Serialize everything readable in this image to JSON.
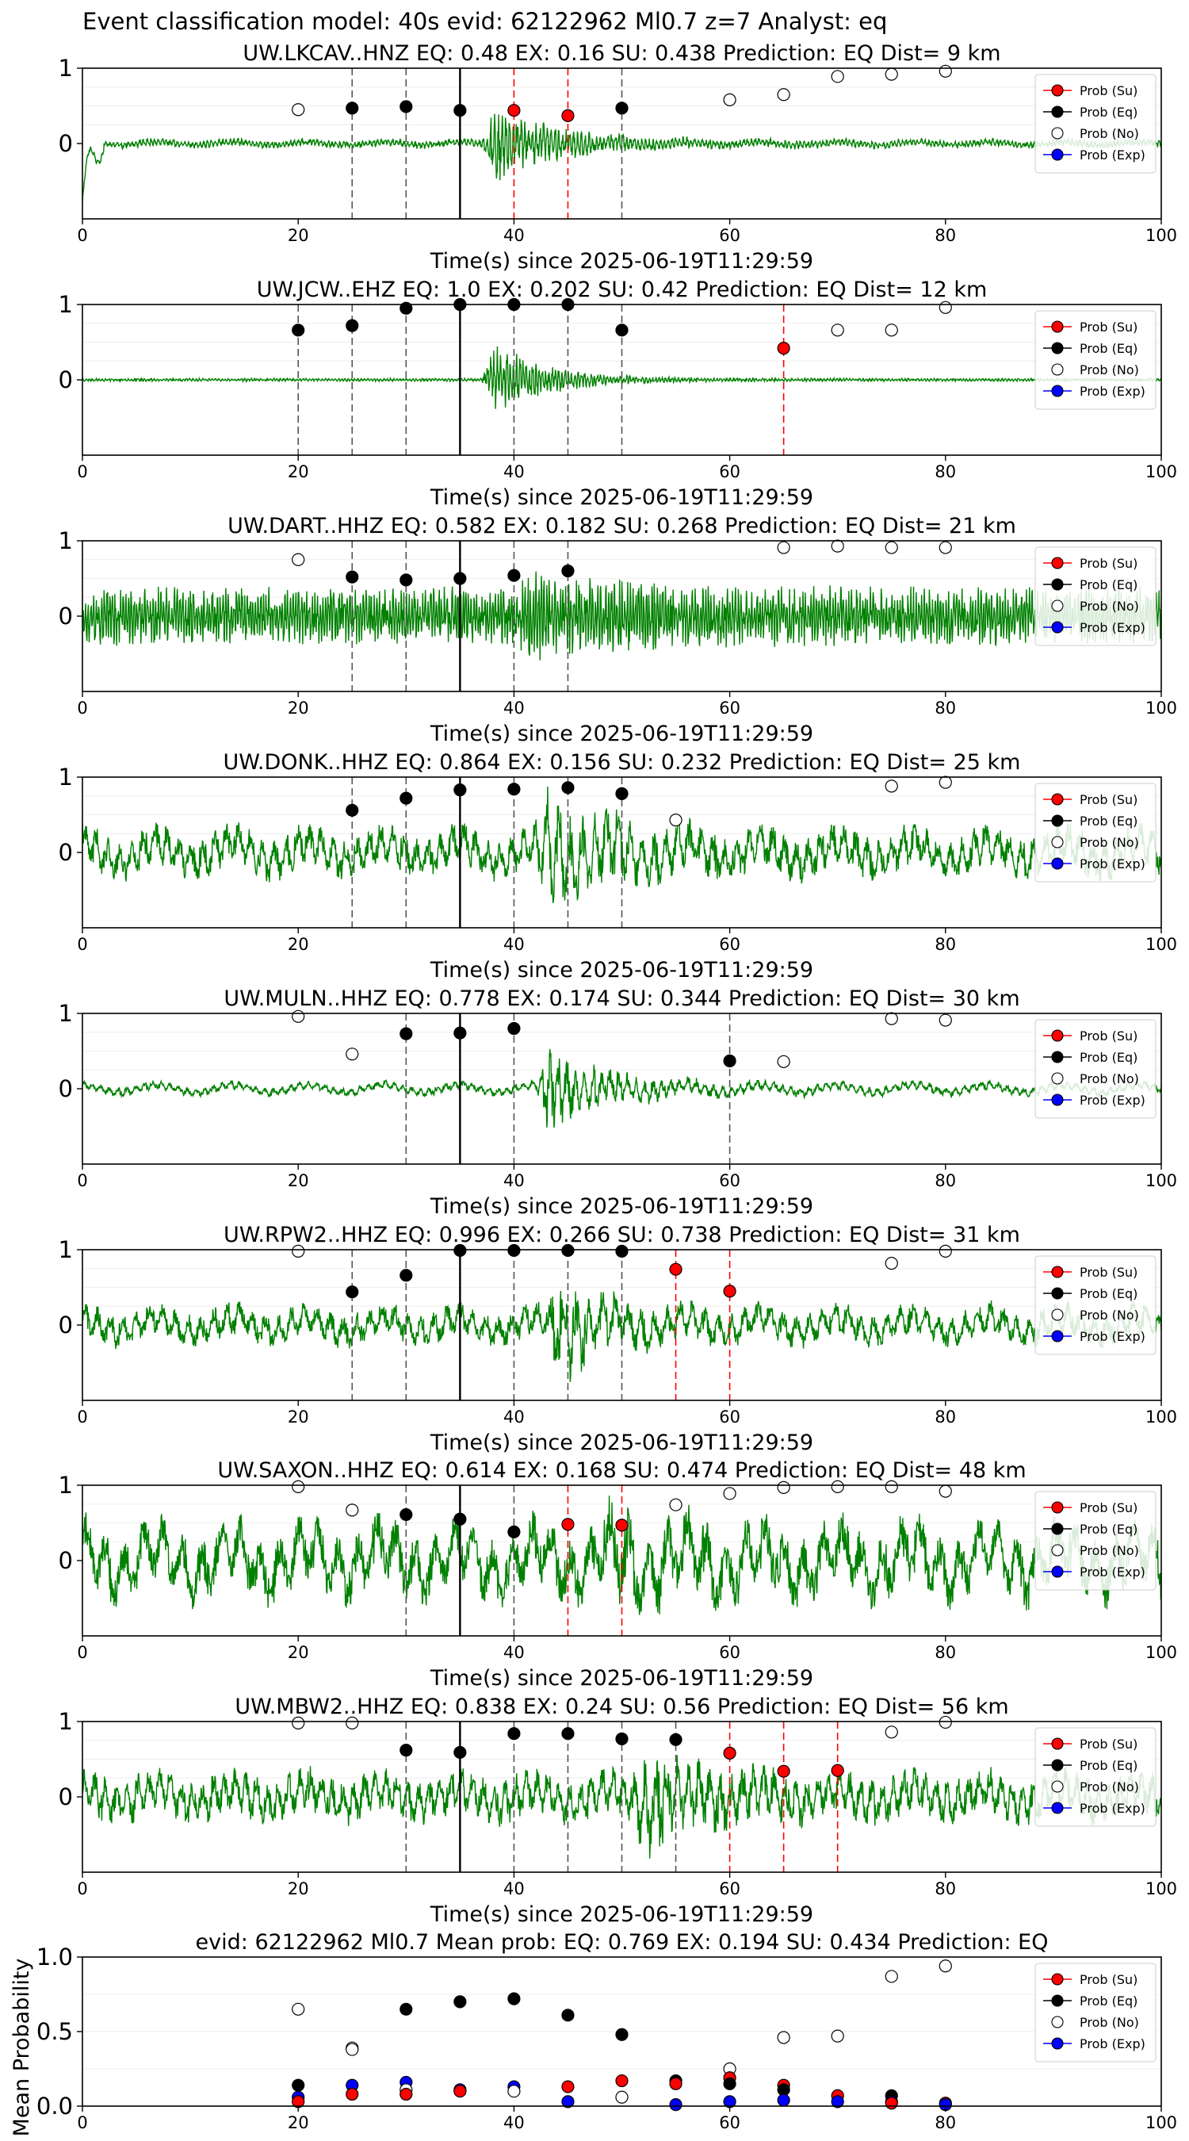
{
  "suptitle": "Event classification model: 40s evid: 62122962 Ml0.7 z=7 Analyst: eq",
  "colors": {
    "waveform": "#008000",
    "su": "#ff0000",
    "eq": "#000000",
    "no": "#ffffff",
    "exp": "#0000ff",
    "eq_line": "#000000",
    "su_line": "#ff0000"
  },
  "legend": [
    "Prob (Su)",
    "Prob (Eq)",
    "Prob (No)",
    "Prob (Exp)"
  ],
  "chart_data": [
    {
      "type": "scatter",
      "title": "UW.LKCAV..HNZ   EQ: 0.48  EX: 0.16  SU: 0.438   Prediction: EQ    Dist= 9 km",
      "xlabel": "Time(s) since 2025-06-19T11:29:59",
      "xlim": [
        0,
        100
      ],
      "ylim": [
        -1,
        1
      ],
      "xticks": [
        0,
        20,
        40,
        60,
        80,
        100
      ],
      "yticks": [
        0,
        1
      ],
      "waveform": {
        "seed": 11,
        "onset": 37,
        "base_amp": 0.05,
        "peak_amp": 0.55,
        "decay": 6,
        "period": 0.35,
        "slow_amp": 0.02
      },
      "pick_time": 35,
      "eq_lines": [
        25,
        30,
        50
      ],
      "su_lines": [
        40,
        45
      ],
      "points": [
        {
          "x": 20,
          "y": 0.45,
          "class": "no"
        },
        {
          "x": 25,
          "y": 0.47,
          "class": "eq"
        },
        {
          "x": 30,
          "y": 0.49,
          "class": "eq"
        },
        {
          "x": 35,
          "y": 0.44,
          "class": "eq"
        },
        {
          "x": 40,
          "y": 0.44,
          "class": "su"
        },
        {
          "x": 45,
          "y": 0.37,
          "class": "su"
        },
        {
          "x": 50,
          "y": 0.47,
          "class": "eq"
        },
        {
          "x": 60,
          "y": 0.58,
          "class": "no"
        },
        {
          "x": 65,
          "y": 0.65,
          "class": "no"
        },
        {
          "x": 70,
          "y": 0.89,
          "class": "no"
        },
        {
          "x": 75,
          "y": 0.92,
          "class": "no"
        },
        {
          "x": 80,
          "y": 0.96,
          "class": "no"
        }
      ]
    },
    {
      "type": "scatter",
      "title": "UW.JCW..EHZ   EQ: 1.0  EX: 0.202  SU: 0.42   Prediction: EQ    Dist= 12 km",
      "xlabel": "Time(s) since 2025-06-19T11:29:59",
      "xlim": [
        0,
        100
      ],
      "ylim": [
        -1,
        1
      ],
      "xticks": [
        0,
        20,
        40,
        60,
        80,
        100
      ],
      "yticks": [
        0,
        1
      ],
      "waveform": {
        "seed": 23,
        "onset": 37,
        "base_amp": 0.02,
        "peak_amp": 0.6,
        "decay": 5,
        "period": 0.3,
        "slow_amp": 0.0
      },
      "pick_time": 35,
      "eq_lines": [
        20,
        25,
        30,
        40,
        45,
        50
      ],
      "su_lines": [
        65
      ],
      "points": [
        {
          "x": 20,
          "y": 0.66,
          "class": "eq"
        },
        {
          "x": 25,
          "y": 0.72,
          "class": "eq"
        },
        {
          "x": 30,
          "y": 0.95,
          "class": "eq"
        },
        {
          "x": 35,
          "y": 1.0,
          "class": "eq"
        },
        {
          "x": 40,
          "y": 1.0,
          "class": "eq"
        },
        {
          "x": 45,
          "y": 1.0,
          "class": "eq"
        },
        {
          "x": 50,
          "y": 0.66,
          "class": "eq"
        },
        {
          "x": 65,
          "y": 0.42,
          "class": "su"
        },
        {
          "x": 70,
          "y": 0.66,
          "class": "no"
        },
        {
          "x": 75,
          "y": 0.66,
          "class": "no"
        },
        {
          "x": 80,
          "y": 0.96,
          "class": "no"
        }
      ]
    },
    {
      "type": "scatter",
      "title": "UW.DART..HHZ   EQ: 0.582  EX: 0.182  SU: 0.268   Prediction: EQ    Dist= 21 km",
      "xlabel": "Time(s) since 2025-06-19T11:29:59",
      "xlim": [
        0,
        100
      ],
      "ylim": [
        -1,
        1
      ],
      "xticks": [
        0,
        20,
        40,
        60,
        80,
        100
      ],
      "yticks": [
        0,
        1
      ],
      "waveform": {
        "seed": 37,
        "onset": 40,
        "base_amp": 0.38,
        "peak_amp": 0.25,
        "decay": 10,
        "period": 0.25,
        "slow_amp": 0.0
      },
      "pick_time": 35,
      "eq_lines": [
        25,
        30,
        40,
        45
      ],
      "su_lines": [],
      "points": [
        {
          "x": 20,
          "y": 0.75,
          "class": "no"
        },
        {
          "x": 25,
          "y": 0.52,
          "class": "eq"
        },
        {
          "x": 30,
          "y": 0.48,
          "class": "eq"
        },
        {
          "x": 35,
          "y": 0.5,
          "class": "eq"
        },
        {
          "x": 40,
          "y": 0.54,
          "class": "eq"
        },
        {
          "x": 45,
          "y": 0.6,
          "class": "eq"
        },
        {
          "x": 65,
          "y": 0.91,
          "class": "no"
        },
        {
          "x": 70,
          "y": 0.93,
          "class": "no"
        },
        {
          "x": 75,
          "y": 0.91,
          "class": "no"
        },
        {
          "x": 80,
          "y": 0.91,
          "class": "no"
        }
      ]
    },
    {
      "type": "scatter",
      "title": "UW.DONK..HHZ   EQ: 0.864  EX: 0.156  SU: 0.232   Prediction: EQ    Dist= 25 km",
      "xlabel": "Time(s) since 2025-06-19T11:29:59",
      "xlim": [
        0,
        100
      ],
      "ylim": [
        -1,
        1
      ],
      "xticks": [
        0,
        20,
        40,
        60,
        80,
        100
      ],
      "yticks": [
        0,
        1
      ],
      "waveform": {
        "seed": 41,
        "onset": 42,
        "base_amp": 0.28,
        "peak_amp": 0.65,
        "decay": 6,
        "period": 1.1,
        "slow_amp": 0.12
      },
      "pick_time": 35,
      "eq_lines": [
        25,
        30,
        40,
        45,
        50
      ],
      "su_lines": [],
      "points": [
        {
          "x": 25,
          "y": 0.56,
          "class": "eq"
        },
        {
          "x": 30,
          "y": 0.72,
          "class": "eq"
        },
        {
          "x": 35,
          "y": 0.83,
          "class": "eq"
        },
        {
          "x": 40,
          "y": 0.84,
          "class": "eq"
        },
        {
          "x": 45,
          "y": 0.86,
          "class": "eq"
        },
        {
          "x": 50,
          "y": 0.78,
          "class": "eq"
        },
        {
          "x": 55,
          "y": 0.43,
          "class": "no"
        },
        {
          "x": 75,
          "y": 0.88,
          "class": "no"
        },
        {
          "x": 80,
          "y": 0.93,
          "class": "no"
        }
      ]
    },
    {
      "type": "scatter",
      "title": "UW.MULN..HHZ   EQ: 0.778  EX: 0.174  SU: 0.344   Prediction: EQ    Dist= 30 km",
      "xlabel": "Time(s) since 2025-06-19T11:29:59",
      "xlim": [
        0,
        100
      ],
      "ylim": [
        -1,
        1
      ],
      "xticks": [
        0,
        20,
        40,
        60,
        80,
        100
      ],
      "yticks": [
        0,
        1
      ],
      "waveform": {
        "seed": 53,
        "onset": 42,
        "base_amp": 0.06,
        "peak_amp": 0.6,
        "decay": 6,
        "period": 0.8,
        "slow_amp": 0.05
      },
      "pick_time": 35,
      "eq_lines": [
        30,
        40,
        60
      ],
      "su_lines": [],
      "points": [
        {
          "x": 20,
          "y": 0.96,
          "class": "no"
        },
        {
          "x": 25,
          "y": 0.46,
          "class": "no"
        },
        {
          "x": 30,
          "y": 0.73,
          "class": "eq"
        },
        {
          "x": 35,
          "y": 0.74,
          "class": "eq"
        },
        {
          "x": 40,
          "y": 0.8,
          "class": "eq"
        },
        {
          "x": 60,
          "y": 0.37,
          "class": "eq"
        },
        {
          "x": 65,
          "y": 0.36,
          "class": "no"
        },
        {
          "x": 75,
          "y": 0.93,
          "class": "no"
        },
        {
          "x": 80,
          "y": 0.91,
          "class": "no"
        }
      ]
    },
    {
      "type": "scatter",
      "title": "UW.RPW2..HHZ   EQ: 0.996  EX: 0.266  SU: 0.738   Prediction: EQ    Dist= 31 km",
      "xlabel": "Time(s) since 2025-06-19T11:29:59",
      "xlim": [
        0,
        100
      ],
      "ylim": [
        -1,
        1
      ],
      "xticks": [
        0,
        20,
        40,
        60,
        80,
        100
      ],
      "yticks": [
        0,
        1
      ],
      "waveform": {
        "seed": 67,
        "onset": 43,
        "base_amp": 0.22,
        "peak_amp": 0.75,
        "decay": 4,
        "period": 1.2,
        "slow_amp": 0.1
      },
      "pick_time": 35,
      "eq_lines": [
        25,
        30,
        40,
        45,
        50
      ],
      "su_lines": [
        55,
        60
      ],
      "points": [
        {
          "x": 20,
          "y": 0.98,
          "class": "no"
        },
        {
          "x": 25,
          "y": 0.44,
          "class": "eq"
        },
        {
          "x": 30,
          "y": 0.66,
          "class": "eq"
        },
        {
          "x": 35,
          "y": 0.99,
          "class": "eq"
        },
        {
          "x": 40,
          "y": 0.99,
          "class": "eq"
        },
        {
          "x": 45,
          "y": 0.99,
          "class": "eq"
        },
        {
          "x": 50,
          "y": 0.98,
          "class": "eq"
        },
        {
          "x": 55,
          "y": 0.74,
          "class": "su"
        },
        {
          "x": 60,
          "y": 0.45,
          "class": "su"
        },
        {
          "x": 75,
          "y": 0.82,
          "class": "no"
        },
        {
          "x": 80,
          "y": 0.98,
          "class": "no"
        }
      ]
    },
    {
      "type": "scatter",
      "title": "UW.SAXON..HHZ   EQ: 0.614  EX: 0.168  SU: 0.474   Prediction: EQ    Dist= 48 km",
      "xlabel": "Time(s) since 2025-06-19T11:29:59",
      "xlim": [
        0,
        100
      ],
      "ylim": [
        -1,
        1
      ],
      "xticks": [
        0,
        20,
        40,
        60,
        80,
        100
      ],
      "yticks": [
        0,
        1
      ],
      "waveform": {
        "seed": 79,
        "onset": 48,
        "base_amp": 0.45,
        "peak_amp": 0.3,
        "decay": 8,
        "period": 1.8,
        "slow_amp": 0.2
      },
      "pick_time": 35,
      "eq_lines": [
        30,
        40
      ],
      "su_lines": [
        45,
        50
      ],
      "points": [
        {
          "x": 20,
          "y": 0.98,
          "class": "no"
        },
        {
          "x": 25,
          "y": 0.67,
          "class": "no"
        },
        {
          "x": 30,
          "y": 0.61,
          "class": "eq"
        },
        {
          "x": 35,
          "y": 0.55,
          "class": "eq"
        },
        {
          "x": 40,
          "y": 0.38,
          "class": "eq"
        },
        {
          "x": 45,
          "y": 0.48,
          "class": "su"
        },
        {
          "x": 50,
          "y": 0.47,
          "class": "su"
        },
        {
          "x": 55,
          "y": 0.74,
          "class": "no"
        },
        {
          "x": 60,
          "y": 0.89,
          "class": "no"
        },
        {
          "x": 65,
          "y": 0.97,
          "class": "no"
        },
        {
          "x": 70,
          "y": 0.98,
          "class": "no"
        },
        {
          "x": 75,
          "y": 0.98,
          "class": "no"
        },
        {
          "x": 80,
          "y": 0.92,
          "class": "no"
        }
      ]
    },
    {
      "type": "scatter",
      "title": "UW.MBW2..HHZ   EQ: 0.838  EX: 0.24  SU: 0.56   Prediction: EQ    Dist= 56 km",
      "xlabel": "Time(s) since 2025-06-19T11:29:59",
      "xlim": [
        0,
        100
      ],
      "ylim": [
        -1,
        1
      ],
      "xticks": [
        0,
        20,
        40,
        60,
        80,
        100
      ],
      "yticks": [
        0,
        1
      ],
      "waveform": {
        "seed": 97,
        "onset": 51,
        "base_amp": 0.3,
        "peak_amp": 0.6,
        "decay": 5,
        "period": 1.0,
        "slow_amp": 0.1
      },
      "pick_time": 35,
      "eq_lines": [
        30,
        40,
        45,
        50,
        55
      ],
      "su_lines": [
        60,
        65,
        70
      ],
      "points": [
        {
          "x": 20,
          "y": 0.98,
          "class": "no"
        },
        {
          "x": 25,
          "y": 0.98,
          "class": "no"
        },
        {
          "x": 30,
          "y": 0.62,
          "class": "eq"
        },
        {
          "x": 35,
          "y": 0.59,
          "class": "eq"
        },
        {
          "x": 40,
          "y": 0.84,
          "class": "eq"
        },
        {
          "x": 45,
          "y": 0.84,
          "class": "eq"
        },
        {
          "x": 50,
          "y": 0.77,
          "class": "eq"
        },
        {
          "x": 55,
          "y": 0.76,
          "class": "eq"
        },
        {
          "x": 60,
          "y": 0.58,
          "class": "su"
        },
        {
          "x": 65,
          "y": 0.34,
          "class": "su"
        },
        {
          "x": 70,
          "y": 0.35,
          "class": "su"
        },
        {
          "x": 75,
          "y": 0.86,
          "class": "no"
        },
        {
          "x": 80,
          "y": 0.99,
          "class": "no"
        }
      ]
    },
    {
      "type": "scatter",
      "title": "evid: 62122962  Ml0.7   Mean prob:    EQ: 0.769  EX: 0.194  SU: 0.434   Prediction: EQ",
      "ylabel": "Mean Probability",
      "xlim": [
        0,
        100
      ],
      "ylim": [
        0,
        1
      ],
      "xticks": [
        0,
        20,
        40,
        60,
        80,
        100
      ],
      "yticks": [
        0.0,
        0.5,
        1.0
      ],
      "ytick_labels": [
        "0.0",
        "0.5",
        "1.0"
      ],
      "points": [
        {
          "x": 20,
          "y": 0.65,
          "class": "no"
        },
        {
          "x": 20,
          "y": 0.14,
          "class": "eq"
        },
        {
          "x": 20,
          "y": 0.06,
          "class": "exp"
        },
        {
          "x": 20,
          "y": 0.03,
          "class": "su"
        },
        {
          "x": 25,
          "y": 0.39,
          "class": "no"
        },
        {
          "x": 25,
          "y": 0.38,
          "class": "no"
        },
        {
          "x": 25,
          "y": 0.14,
          "class": "exp"
        },
        {
          "x": 25,
          "y": 0.08,
          "class": "su"
        },
        {
          "x": 30,
          "y": 0.65,
          "class": "eq"
        },
        {
          "x": 30,
          "y": 0.16,
          "class": "exp"
        },
        {
          "x": 30,
          "y": 0.11,
          "class": "no"
        },
        {
          "x": 30,
          "y": 0.08,
          "class": "su"
        },
        {
          "x": 35,
          "y": 0.7,
          "class": "eq"
        },
        {
          "x": 35,
          "y": 0.11,
          "class": "exp"
        },
        {
          "x": 35,
          "y": 0.1,
          "class": "su"
        },
        {
          "x": 40,
          "y": 0.72,
          "class": "eq"
        },
        {
          "x": 40,
          "y": 0.13,
          "class": "exp"
        },
        {
          "x": 40,
          "y": 0.1,
          "class": "no"
        },
        {
          "x": 45,
          "y": 0.61,
          "class": "eq"
        },
        {
          "x": 45,
          "y": 0.13,
          "class": "su"
        },
        {
          "x": 45,
          "y": 0.03,
          "class": "exp"
        },
        {
          "x": 50,
          "y": 0.48,
          "class": "eq"
        },
        {
          "x": 50,
          "y": 0.17,
          "class": "su"
        },
        {
          "x": 50,
          "y": 0.06,
          "class": "no"
        },
        {
          "x": 55,
          "y": 0.17,
          "class": "eq"
        },
        {
          "x": 55,
          "y": 0.15,
          "class": "su"
        },
        {
          "x": 55,
          "y": 0.01,
          "class": "exp"
        },
        {
          "x": 60,
          "y": 0.25,
          "class": "no"
        },
        {
          "x": 60,
          "y": 0.19,
          "class": "su"
        },
        {
          "x": 60,
          "y": 0.15,
          "class": "eq"
        },
        {
          "x": 60,
          "y": 0.03,
          "class": "exp"
        },
        {
          "x": 65,
          "y": 0.46,
          "class": "no"
        },
        {
          "x": 65,
          "y": 0.14,
          "class": "su"
        },
        {
          "x": 65,
          "y": 0.11,
          "class": "eq"
        },
        {
          "x": 65,
          "y": 0.04,
          "class": "exp"
        },
        {
          "x": 70,
          "y": 0.47,
          "class": "no"
        },
        {
          "x": 70,
          "y": 0.07,
          "class": "su"
        },
        {
          "x": 70,
          "y": 0.03,
          "class": "exp"
        },
        {
          "x": 75,
          "y": 0.87,
          "class": "no"
        },
        {
          "x": 75,
          "y": 0.07,
          "class": "eq"
        },
        {
          "x": 75,
          "y": 0.03,
          "class": "exp"
        },
        {
          "x": 75,
          "y": 0.02,
          "class": "su"
        },
        {
          "x": 80,
          "y": 0.94,
          "class": "no"
        },
        {
          "x": 80,
          "y": 0.02,
          "class": "su"
        },
        {
          "x": 80,
          "y": 0.01,
          "class": "exp"
        }
      ]
    }
  ]
}
